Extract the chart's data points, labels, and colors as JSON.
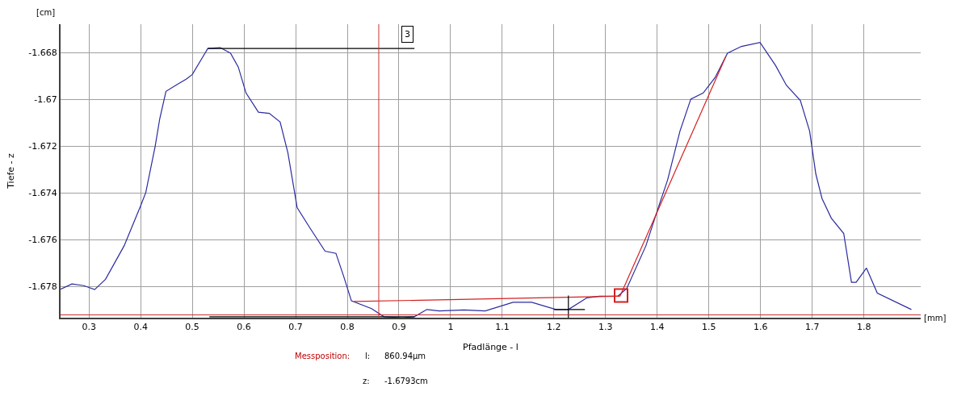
{
  "chart_data": {
    "type": "line",
    "xlabel": "Pfadlänge - l",
    "ylabel": "Tiefe - z",
    "xlim": [
      0.245,
      1.91
    ],
    "ylim": [
      -1.67933,
      -1.66679
    ],
    "xticks": [
      0.3,
      0.4,
      0.5,
      0.6,
      0.7,
      0.8,
      0.9,
      1,
      1.1,
      1.2,
      1.3,
      1.4,
      1.5,
      1.6,
      1.7,
      1.8
    ],
    "yticks": [
      -1.678,
      -1.676,
      -1.674,
      -1.672,
      -1.67,
      -1.668
    ],
    "grid": true,
    "marker": "none",
    "line_style": "solid",
    "series": [
      {
        "color": "#2b2ba0",
        "x": [
          0.245,
          0.267,
          0.29,
          0.311,
          0.332,
          0.368,
          0.4,
          0.41,
          0.428,
          0.437,
          0.449,
          0.47,
          0.488,
          0.5,
          0.53,
          0.554,
          0.574,
          0.589,
          0.604,
          0.628,
          0.649,
          0.67,
          0.685,
          0.703,
          0.727,
          0.757,
          0.778,
          0.793,
          0.808,
          0.847,
          0.871,
          0.907,
          0.93,
          0.954,
          0.978,
          1.026,
          1.067,
          1.121,
          1.157,
          1.204,
          1.228,
          1.264,
          1.288,
          1.324,
          1.341,
          1.378,
          1.402,
          1.42,
          1.444,
          1.465,
          1.489,
          1.512,
          1.536,
          1.563,
          1.599,
          1.629,
          1.65,
          1.677,
          1.695,
          1.707,
          1.719,
          1.737,
          1.761,
          1.776,
          1.785,
          1.805,
          1.826,
          1.892
        ],
        "values": [
          -1.67811,
          -1.67789,
          -1.67796,
          -1.67813,
          -1.67769,
          -1.67626,
          -1.67455,
          -1.67398,
          -1.67202,
          -1.67083,
          -1.66966,
          -1.66937,
          -1.66914,
          -1.66894,
          -1.66783,
          -1.66779,
          -1.66803,
          -1.66862,
          -1.66973,
          -1.67055,
          -1.6706,
          -1.67097,
          -1.67228,
          -1.67463,
          -1.67547,
          -1.67649,
          -1.67658,
          -1.67756,
          -1.67861,
          -1.67894,
          -1.67929,
          -1.67933,
          -1.67929,
          -1.67898,
          -1.67904,
          -1.679,
          -1.67904,
          -1.67867,
          -1.67867,
          -1.67898,
          -1.67898,
          -1.67848,
          -1.67841,
          -1.67841,
          -1.67808,
          -1.67626,
          -1.67463,
          -1.67345,
          -1.67136,
          -1.66999,
          -1.66973,
          -1.66907,
          -1.66803,
          -1.66774,
          -1.66757,
          -1.66855,
          -1.6694,
          -1.67005,
          -1.67136,
          -1.67319,
          -1.67424,
          -1.67508,
          -1.67573,
          -1.67782,
          -1.67782,
          -1.67721,
          -1.67828,
          -1.67898
        ]
      },
      {
        "color": "#d42020",
        "x": [
          0.813,
          1.328
        ],
        "values": [
          -1.67864,
          -1.67841
        ]
      },
      {
        "color": "#d42020",
        "x": [
          1.328,
          1.533
        ],
        "values": [
          -1.67841,
          -1.66816
        ]
      },
      {
        "color": "#d42020",
        "type": "scatter",
        "marker": "square",
        "x": [
          1.33
        ],
        "values": [
          -1.67838
        ]
      },
      {
        "color": "#000000",
        "x": [
          0.53,
          0.93
        ],
        "values": [
          -1.66783,
          -1.66783
        ]
      },
      {
        "color": "#000000",
        "x": [
          0.533,
          0.93
        ],
        "values": [
          -1.67929,
          -1.67929
        ]
      },
      {
        "color": "#000000",
        "x": [
          1.228,
          1.228
        ],
        "values": [
          -1.67838,
          -1.67933
        ]
      },
      {
        "color": "#000000",
        "x": [
          1.2,
          1.26
        ],
        "values": [
          -1.67898,
          -1.67898
        ]
      }
    ],
    "ref_lines": [
      {
        "axis": "x",
        "value": 0.86094,
        "color": "#c83232"
      },
      {
        "axis": "y",
        "value": -1.67921,
        "color": "#c83232"
      }
    ],
    "annotations": [
      {
        "text": "3",
        "x": 0.917,
        "y": -1.66723
      },
      "[cm]",
      "[mm]",
      "Messposition:",
      "l:",
      "860.94µm",
      "z:",
      "-1.6793cm"
    ]
  }
}
